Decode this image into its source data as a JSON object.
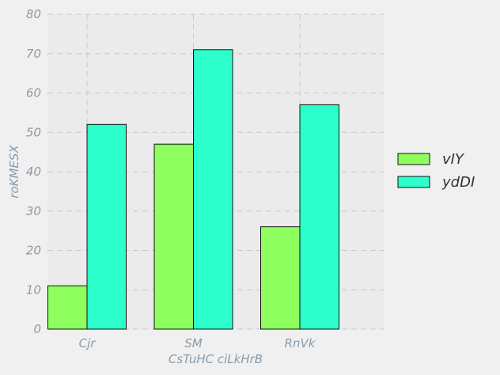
{
  "chart_data": {
    "type": "bar",
    "categories": [
      "Cjr",
      "SM",
      "RnVk"
    ],
    "series": [
      {
        "name": "vIY",
        "values": [
          11,
          47,
          26
        ],
        "color": "#8eff5e"
      },
      {
        "name": "ydDI",
        "values": [
          52,
          71,
          57
        ],
        "color": "#2dffcc"
      }
    ],
    "xlabel": "CsTuHC ciLkHrB",
    "ylabel": "roKMESX",
    "ylim": [
      0,
      80
    ],
    "yticks": [
      0,
      10,
      20,
      30,
      40,
      50,
      60,
      70,
      80
    ],
    "grid": true,
    "legend_position": "right",
    "colors": {
      "plot_background": "#ebebeb",
      "page_background": "#f0f0f0",
      "grid": "#c8c8c8",
      "bar_edge": "#111111",
      "text": "#8a9aa8"
    }
  }
}
